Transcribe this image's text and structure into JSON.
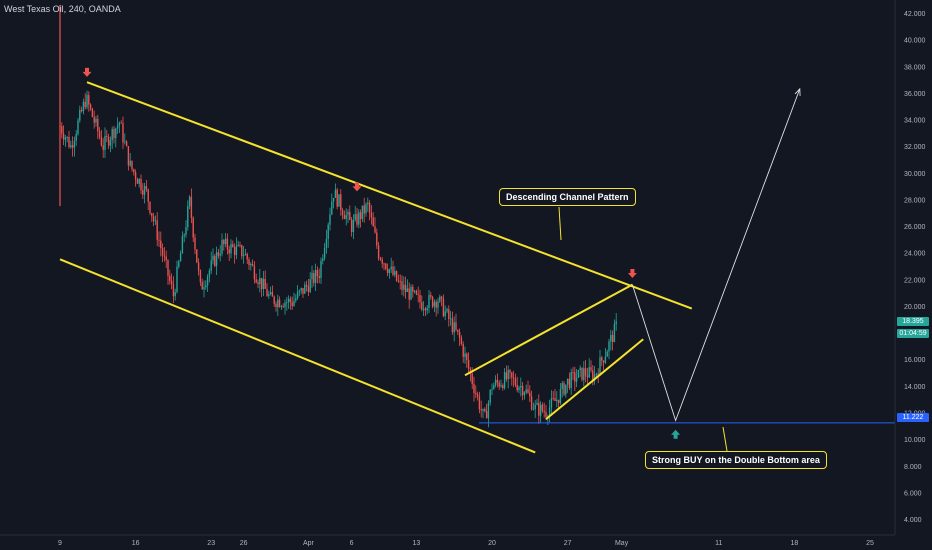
{
  "header": {
    "symbol_title": "West Texas Oil, 240, OANDA"
  },
  "annotations": {
    "channel_label": "Descending Channel Pattern",
    "buy_label": "Strong BUY on the Double Bottom area"
  },
  "price_tags": {
    "last_price": "18.395",
    "countdown": "01:04:59",
    "support_price": "11.222"
  },
  "colors": {
    "background": "#131722",
    "bull_candle": "#26a69a",
    "bear_candle": "#ef5350",
    "channel_lines": "#f5e32b",
    "support_line": "#2962ff",
    "sell_arrow": "#ef5350",
    "buy_arrow": "#26a69a",
    "projection_line": "#e0e0e0",
    "axis_text": "#b2b5be"
  },
  "chart_data": {
    "type": "candlestick",
    "title": "West Texas Oil, 240, OANDA",
    "x_tick_labels": [
      "9",
      "16",
      "23",
      "26",
      "Apr",
      "6",
      "13",
      "20",
      "27",
      "May",
      "11",
      "18",
      "25"
    ],
    "y_tick_labels": [
      "4.000",
      "6.000",
      "8.000",
      "10.000",
      "12.000",
      "14.000",
      "16.000",
      "18.000",
      "20.000",
      "22.000",
      "24.000",
      "26.000",
      "28.000",
      "30.000",
      "32.000",
      "34.000",
      "36.000",
      "38.000",
      "40.000",
      "42.000"
    ],
    "ylim": [
      2.8,
      42.6
    ],
    "price_path": [
      {
        "day": 0,
        "price": 33.5
      },
      {
        "day": 1,
        "price": 32.0
      },
      {
        "day": 2.4,
        "price": 35.6
      },
      {
        "day": 4,
        "price": 32.0
      },
      {
        "day": 5.5,
        "price": 33.8
      },
      {
        "day": 6.5,
        "price": 30.5
      },
      {
        "day": 8,
        "price": 28.5
      },
      {
        "day": 10.5,
        "price": 20.8
      },
      {
        "day": 12,
        "price": 27.8
      },
      {
        "day": 13,
        "price": 21.3
      },
      {
        "day": 15,
        "price": 24.6
      },
      {
        "day": 17,
        "price": 24.0
      },
      {
        "day": 19.5,
        "price": 20.5
      },
      {
        "day": 21.5,
        "price": 20.3
      },
      {
        "day": 24,
        "price": 22.5
      },
      {
        "day": 25.3,
        "price": 28.6
      },
      {
        "day": 27,
        "price": 26.0
      },
      {
        "day": 28.5,
        "price": 27.5
      },
      {
        "day": 29.5,
        "price": 24.0
      },
      {
        "day": 31.5,
        "price": 21.5
      },
      {
        "day": 33.5,
        "price": 20.2
      },
      {
        "day": 35,
        "price": 20.5
      },
      {
        "day": 37,
        "price": 17.5
      },
      {
        "day": 38.5,
        "price": 13.5
      },
      {
        "day": 39.3,
        "price": 11.4
      },
      {
        "day": 40,
        "price": 14.0
      },
      {
        "day": 41.5,
        "price": 14.6
      },
      {
        "day": 43,
        "price": 13.8
      },
      {
        "day": 44,
        "price": 12.3
      },
      {
        "day": 45,
        "price": 12.1
      },
      {
        "day": 46,
        "price": 13.0
      },
      {
        "day": 47,
        "price": 14.3
      },
      {
        "day": 48.5,
        "price": 15.0
      },
      {
        "day": 49.5,
        "price": 14.8
      },
      {
        "day": 50.5,
        "price": 16.5
      },
      {
        "day": 51.5,
        "price": 18.4
      }
    ],
    "channel_upper": [
      {
        "day": 2.5,
        "price": 36.8
      },
      {
        "day": 58.5,
        "price": 19.8
      }
    ],
    "channel_lower": [
      {
        "day": 0,
        "price": 23.5
      },
      {
        "day": 44,
        "price": 9.0
      }
    ],
    "wedge_upper": [
      {
        "day": 37.5,
        "price": 14.8
      },
      {
        "day": 53,
        "price": 21.6
      }
    ],
    "wedge_lower": [
      {
        "day": 45,
        "price": 11.5
      },
      {
        "day": 54,
        "price": 17.5
      }
    ],
    "support_level": {
      "price": 11.222,
      "from_day": 38.8
    },
    "projection": [
      {
        "day": 53,
        "price": 21.6
      },
      {
        "day": 57,
        "price": 11.4
      },
      {
        "day": 68.5,
        "price": 36.3
      }
    ],
    "sell_signals": [
      {
        "day": 2.5,
        "price": 37.2
      },
      {
        "day": 27.5,
        "price": 28.6
      },
      {
        "day": 53,
        "price": 22.1
      }
    ],
    "buy_signal": {
      "day": 57,
      "price": 10.7
    },
    "last_price": 18.395,
    "legend": "none",
    "grid": false
  }
}
